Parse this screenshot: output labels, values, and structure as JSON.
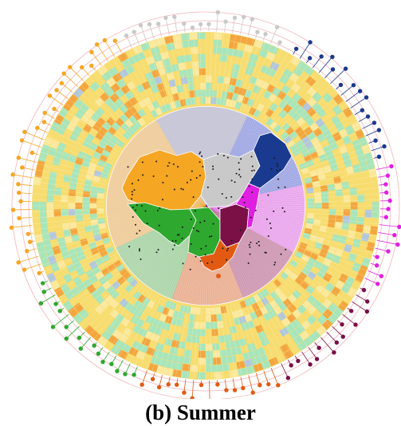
{
  "figure": {
    "caption": "(b) Summer",
    "region_colors": {
      "northwest": "#f5a623",
      "north": "#c9c9c9",
      "northeast": "#1a3a8f",
      "east": "#e020e0",
      "central": "#7a1045",
      "southwest": "#2ea82e",
      "south": "#e25a12"
    },
    "ring_palette": {
      "base": "#f7dc6f",
      "mint": "#9ee6c2",
      "orange": "#f2a03a",
      "light": "#fbe9a0",
      "blue": "#a9c4e8"
    },
    "sector_colors": {
      "north": "#c8c8d8",
      "northeast": "#aab0ea",
      "east": "#efb0ef",
      "central": "#d6a0b8",
      "south": "#f0b89a",
      "southwest": "#b6dcb0",
      "northwest": "#f4d2a0"
    }
  }
}
